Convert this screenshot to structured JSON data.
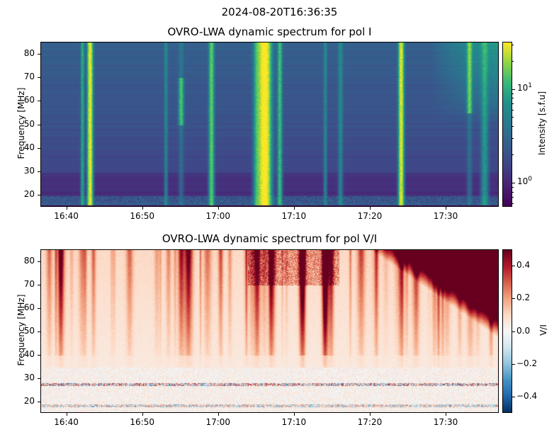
{
  "figure": {
    "suptitle": "2024-08-20T16:36:35"
  },
  "chart_data": [
    {
      "type": "heatmap",
      "title": "OVRO-LWA dynamic spectrum for pol I",
      "ylabel": "Frequency [MHz]",
      "xlabel": "",
      "x_ticks": [
        "16:40",
        "16:50",
        "17:00",
        "17:10",
        "17:20",
        "17:30"
      ],
      "y_ticks": [
        20,
        30,
        40,
        50,
        60,
        70,
        80
      ],
      "x_range": [
        "16:36:35",
        "17:37:00"
      ],
      "ylim": [
        15,
        85
      ],
      "colormap": "viridis",
      "color_scale": "log",
      "colorbar_label": "Intensity [s.f.u]",
      "colorbar_ticks": [
        "10^0",
        "10^1"
      ],
      "colorbar_range": [
        0.55,
        32
      ],
      "bursts": [
        {
          "time": "16:43",
          "intensity": 30
        },
        {
          "time": "16:55",
          "intensity": 12
        },
        {
          "time": "16:59",
          "intensity": 14
        },
        {
          "time": "17:06",
          "intensity": 40
        },
        {
          "time": "17:24",
          "intensity": 28
        },
        {
          "time": "17:33",
          "intensity": 15
        }
      ]
    },
    {
      "type": "heatmap",
      "title": "OVRO-LWA dynamic spectrum for pol V/I",
      "ylabel": "Frequency [MHz]",
      "xlabel": "",
      "x_ticks": [
        "16:40",
        "16:50",
        "17:00",
        "17:10",
        "17:20",
        "17:30"
      ],
      "y_ticks": [
        20,
        30,
        40,
        50,
        60,
        70,
        80
      ],
      "x_range": [
        "16:36:35",
        "17:37:00"
      ],
      "ylim": [
        15,
        85
      ],
      "colormap": "RdBu_r",
      "color_scale": "linear",
      "colorbar_label": "V/I",
      "colorbar_ticks": [
        "0.4",
        "0.2",
        "0.0",
        "−0.2",
        "−0.4"
      ],
      "colorbar_range": [
        -0.5,
        0.5
      ]
    }
  ]
}
